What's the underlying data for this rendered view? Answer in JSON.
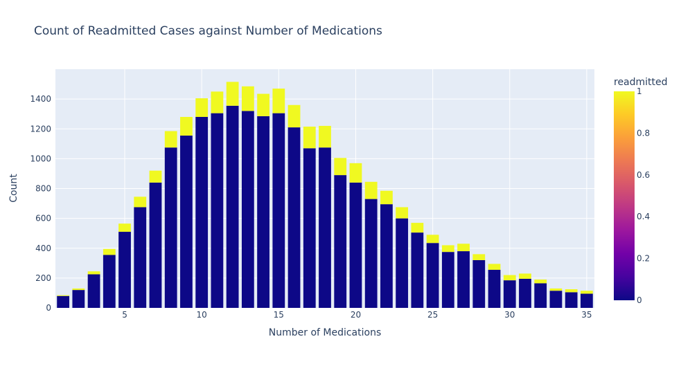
{
  "chart_data": {
    "type": "bar",
    "barmode": "stack",
    "title": "Count of Readmitted Cases against Number of Medications",
    "xlabel": "Number of Medications",
    "ylabel": "Count",
    "x": [
      1,
      2,
      3,
      4,
      5,
      6,
      7,
      8,
      9,
      10,
      11,
      12,
      13,
      14,
      15,
      16,
      17,
      18,
      19,
      20,
      21,
      22,
      23,
      24,
      25,
      26,
      27,
      28,
      29,
      30,
      31,
      32,
      33,
      34,
      35
    ],
    "series": [
      {
        "readmitted": 0,
        "color": "#0d0887",
        "values": [
          80,
          120,
          225,
          355,
          510,
          675,
          840,
          1075,
          1155,
          1280,
          1305,
          1355,
          1320,
          1285,
          1305,
          1210,
          1070,
          1075,
          890,
          840,
          730,
          695,
          600,
          505,
          435,
          375,
          380,
          320,
          255,
          185,
          195,
          165,
          115,
          105,
          95
        ]
      },
      {
        "readmitted": 1,
        "color": "#f0f921",
        "values": [
          5,
          10,
          20,
          40,
          55,
          70,
          80,
          110,
          125,
          125,
          145,
          160,
          165,
          150,
          165,
          150,
          145,
          145,
          115,
          130,
          115,
          90,
          75,
          65,
          55,
          45,
          50,
          40,
          40,
          35,
          35,
          25,
          15,
          20,
          20
        ]
      }
    ],
    "xticks": [
      5,
      10,
      15,
      20,
      25,
      30,
      35
    ],
    "yticks": [
      0,
      200,
      400,
      600,
      800,
      1000,
      1200,
      1400
    ],
    "xlim": [
      0.5,
      35.5
    ],
    "ylim": [
      0,
      1600
    ],
    "colorbar": {
      "title": "readmitted",
      "ticks": [
        "0",
        "0.2",
        "0.4",
        "0.6",
        "0.8",
        "1"
      ],
      "colorscale": [
        "#0d0887",
        "#46039f",
        "#7201a8",
        "#9c179e",
        "#bd3786",
        "#d8576b",
        "#ed7953",
        "#fb9f3a",
        "#fdca26",
        "#f0f921"
      ]
    },
    "plot_background": "#e5ecf6",
    "grid": true
  }
}
